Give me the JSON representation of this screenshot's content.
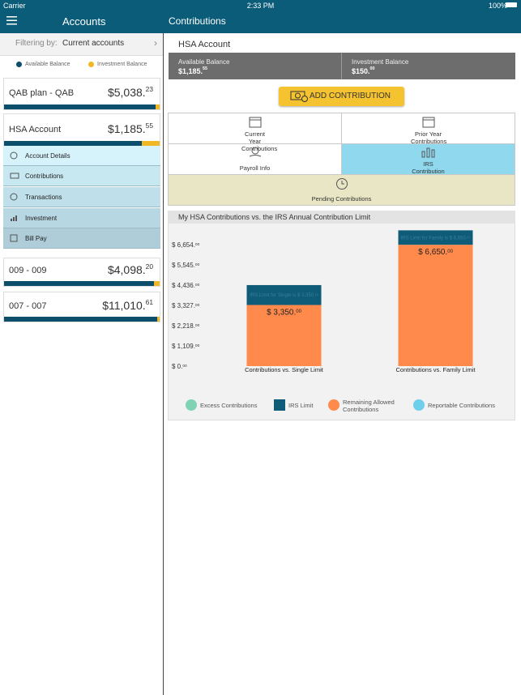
{
  "status": {
    "carrier": "Carrier",
    "time": "2:33 PM",
    "battery": "100%"
  },
  "nav": {
    "left_title": "Accounts",
    "right_title": "Contributions"
  },
  "sidebar": {
    "filter_label": "Filtering by:",
    "filter_value": "Current accounts",
    "legend": [
      "Available Balance",
      "Investment Balance"
    ],
    "accounts": [
      {
        "name": "QAB plan - QAB",
        "balance": "$5,038.23"
      },
      {
        "name": "HSA Account",
        "balance": "$1,185.55"
      },
      {
        "name": "009 - 009",
        "balance": "$4,098.20"
      },
      {
        "name": "007 - 007",
        "balance": "$11,010.61"
      }
    ],
    "menu": [
      "Account Details",
      "Contributions",
      "Transactions",
      "Investment",
      "Bill Pay"
    ]
  },
  "main": {
    "account_title": "HSA Account",
    "available_label": "Available Balance",
    "available_value": "$1,185.55",
    "investment_label": "Investment Balance",
    "investment_value": "$150.00",
    "add_button": "ADD CONTRIBUTION",
    "tabs": [
      "Current Year Contributions",
      "Prior Year Contributions",
      "Payroll Info",
      "IRS Contribution Limit",
      "Pending Contributions"
    ]
  },
  "chart_data": {
    "type": "stacked-bar",
    "title": "My HSA Contributions vs. the IRS Annual Contribution Limit",
    "categories": [
      "Contributions vs. Single Limit",
      "Contributions vs. Family Limit"
    ],
    "series": [
      {
        "name": "Excess Contributions",
        "color": "#7fd3b3",
        "marker": "circle",
        "values": [
          0,
          0
        ]
      },
      {
        "name": "IRS Limit",
        "color": "#0e5c78",
        "marker": "square",
        "values": [
          1090,
          790
        ]
      },
      {
        "name": "Remaining Allowed Contributions",
        "color": "#ff8a4c",
        "marker": "circle",
        "values": [
          3350,
          6650
        ],
        "value_labels": [
          "$ 3,350.00",
          "$ 6,650.00"
        ]
      },
      {
        "name": "Reportable Contributions",
        "color": "#6dcfe9",
        "marker": "circle",
        "values": [
          0,
          0
        ]
      }
    ],
    "annotations": [
      "IRS Limit for Single is $ 3,350.00",
      "IRS Limit for Family is $ 6,650.00"
    ],
    "ylim": [
      0,
      7500
    ],
    "yticks": [
      {
        "value": 0,
        "label": "$ 0.00"
      },
      {
        "value": 1109,
        "label": "$ 1,109.00"
      },
      {
        "value": 2218,
        "label": "$ 2,218.00"
      },
      {
        "value": 3327,
        "label": "$ 3,327.00"
      },
      {
        "value": 4436,
        "label": "$ 4,436.00"
      },
      {
        "value": 5545,
        "label": "$ 5,545.00"
      },
      {
        "value": 6654,
        "label": "$ 6,654.00"
      }
    ],
    "grid": false
  }
}
